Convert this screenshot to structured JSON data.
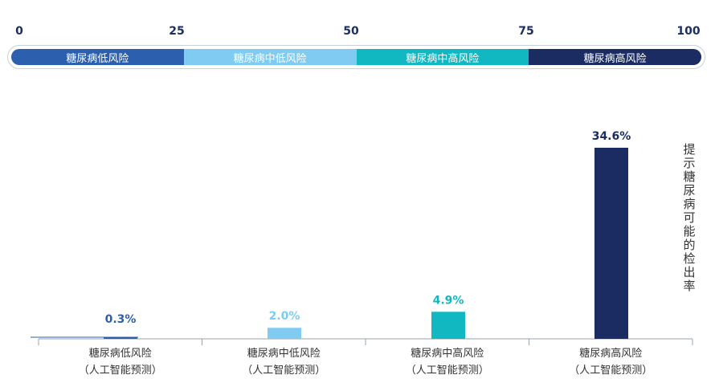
{
  "scale": {
    "ticks": [
      "0",
      "25",
      "50",
      "75",
      "100"
    ],
    "bands": [
      {
        "label": "糖尿病低风险",
        "from": 0,
        "to": 25,
        "color": "#2c5fae"
      },
      {
        "label": "糖尿病中低风险",
        "from": 25,
        "to": 50,
        "color": "#7fcbf2"
      },
      {
        "label": "糖尿病中高风险",
        "from": 50,
        "to": 75,
        "color": "#11b8c2"
      },
      {
        "label": "糖尿病高风险",
        "from": 75,
        "to": 100,
        "color": "#1b2c62"
      }
    ]
  },
  "chart_data": {
    "type": "bar",
    "categories": [
      [
        "糖尿病低风险",
        "（人工智能预测）"
      ],
      [
        "糖尿病中低风险",
        "（人工智能预测）"
      ],
      [
        "糖尿病中高风险",
        "（人工智能预测）"
      ],
      [
        "糖尿病高风险",
        "（人工智能预测）"
      ]
    ],
    "values": [
      0.3,
      2.0,
      4.9,
      34.6
    ],
    "value_labels": [
      "0.3%",
      "2.0%",
      "4.9%",
      "34.6%"
    ],
    "colors": [
      "#2c5fae",
      "#7fcbf2",
      "#11b8c2",
      "#1b2c62"
    ],
    "ylabel": "提示糖尿病可能的检出率",
    "ylim": [
      0,
      34.6
    ],
    "grid": false,
    "legend": "none"
  }
}
